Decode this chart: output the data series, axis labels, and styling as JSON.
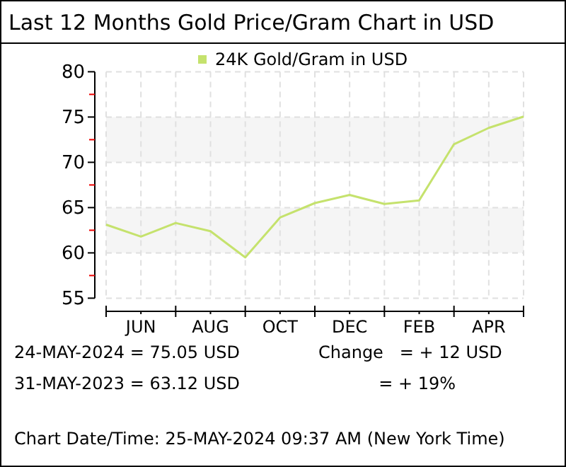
{
  "chart_data": {
    "type": "line",
    "title": "Last 12 Months Gold Price/Gram Chart in USD",
    "categories": [
      null,
      "JUN",
      null,
      "AUG",
      null,
      "OCT",
      null,
      "DEC",
      null,
      "FEB",
      null,
      "APR",
      null
    ],
    "series": [
      {
        "name": "24K Gold/Gram  in USD",
        "color": "#c5e26d",
        "values": [
          63.12,
          61.8,
          63.3,
          62.4,
          59.5,
          63.9,
          65.5,
          66.4,
          65.4,
          65.8,
          72.0,
          73.8,
          75.05
        ]
      }
    ],
    "ylim": [
      55,
      80
    ],
    "yticks": [
      55,
      {
        "value": 57.5,
        "label": null
      },
      60,
      {
        "value": 62.5,
        "label": null
      },
      65,
      {
        "value": 67.5,
        "label": null
      },
      70,
      {
        "value": 72.5,
        "label": null
      },
      75,
      {
        "value": 77.5,
        "label": null
      },
      80
    ],
    "grid": true,
    "legend": "top",
    "marker": "none",
    "line_style": "solid",
    "annotations": [
      "24-MAY-2024 = 75.05 USD",
      "31-MAY-2023 = 63.12 USD",
      "Change   = + 12 USD",
      "= + 19%",
      "Chart Date/Time: 25-MAY-2024 09:37 AM (New York Time)"
    ]
  }
}
